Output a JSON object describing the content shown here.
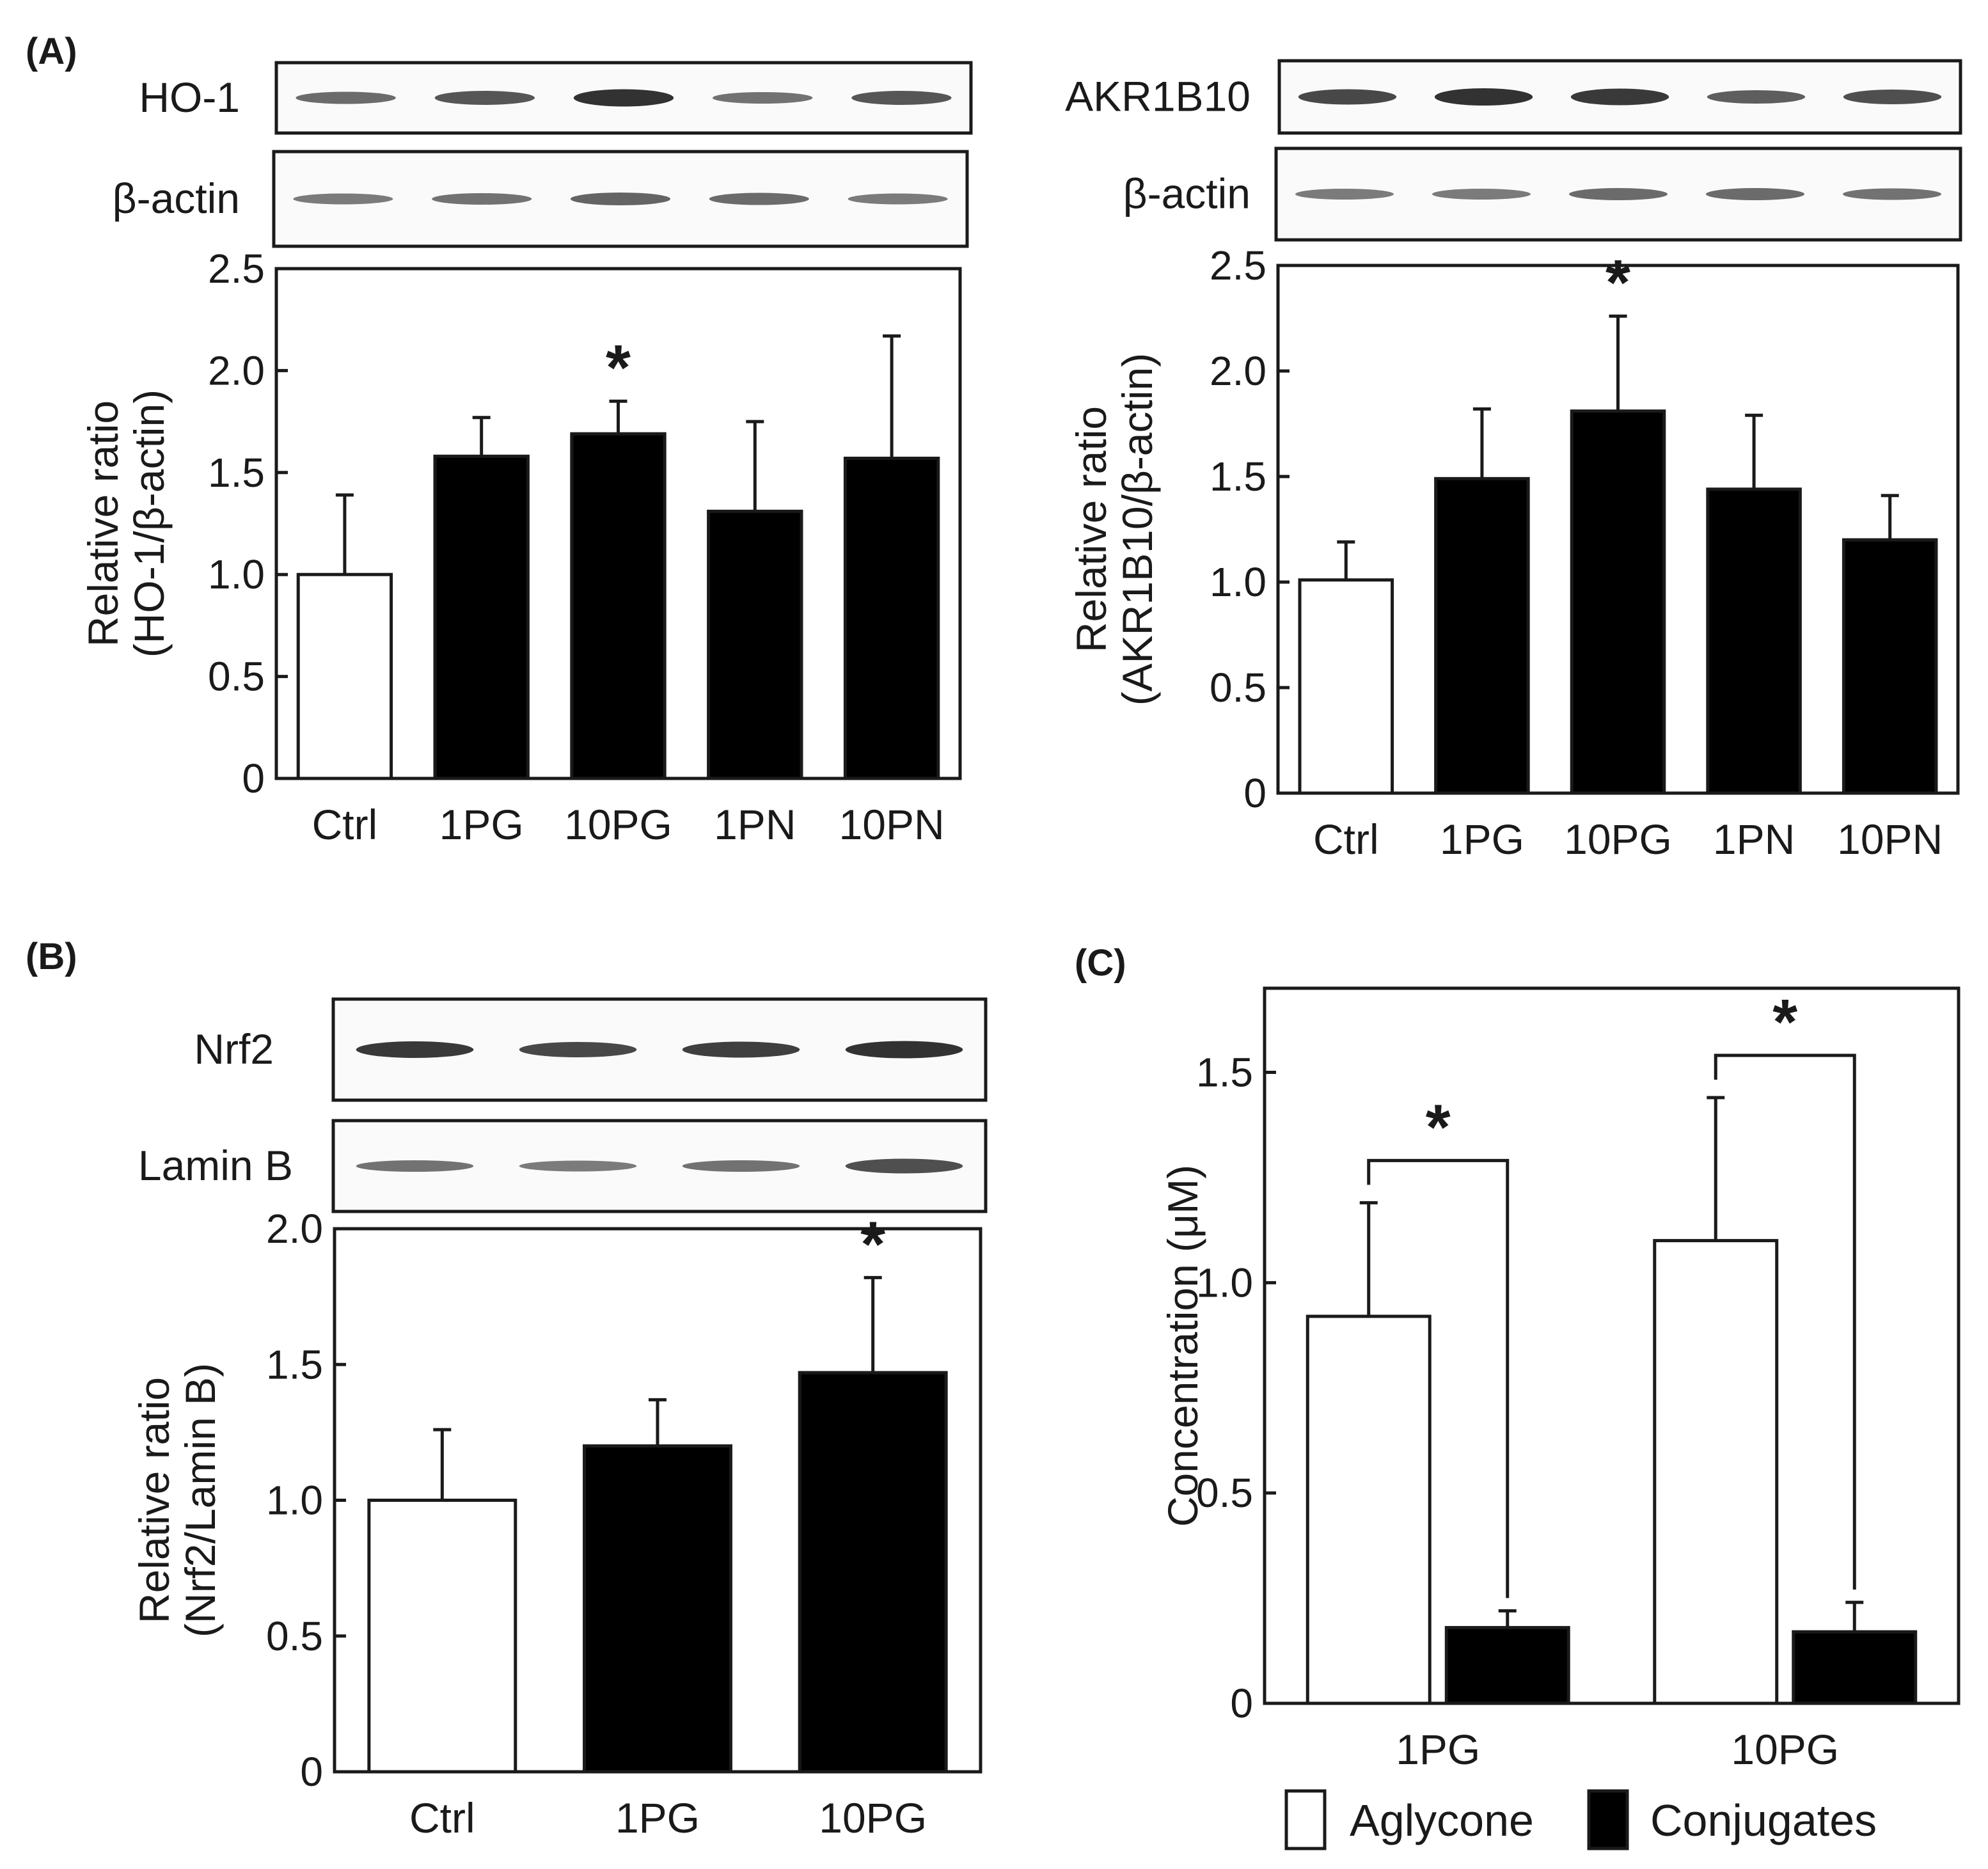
{
  "panels": {
    "A": "(A)",
    "B": "(B)",
    "C": "(C)"
  },
  "blots": [
    {
      "name": "HO-1",
      "intensity": [
        0.55,
        0.7,
        0.95,
        0.5,
        0.7
      ]
    },
    {
      "name": "β-actin",
      "intensity": [
        0.45,
        0.5,
        0.6,
        0.55,
        0.45
      ]
    },
    {
      "name": "AKR1B10",
      "intensity": [
        0.8,
        0.95,
        0.9,
        0.65,
        0.75
      ]
    },
    {
      "name": "β-actin",
      "intensity": [
        0.45,
        0.45,
        0.55,
        0.55,
        0.5
      ]
    },
    {
      "name": "Nrf2",
      "intensity": [
        0.9,
        0.8,
        0.85,
        0.95
      ]
    },
    {
      "name": "Lamin B",
      "intensity": [
        0.5,
        0.45,
        0.5,
        0.75
      ]
    }
  ],
  "chart_data": [
    {
      "id": "A-left",
      "type": "bar",
      "categories": [
        "Ctrl",
        "1PG",
        "10PG",
        "1PN",
        "10PN"
      ],
      "values": [
        1.0,
        1.58,
        1.69,
        1.31,
        1.57
      ],
      "errors": [
        0.39,
        0.19,
        0.16,
        0.44,
        0.6
      ],
      "fills": [
        "#ffffff",
        "#000000",
        "#000000",
        "#000000",
        "#000000"
      ],
      "significant": [
        false,
        false,
        true,
        false,
        false
      ],
      "significance_marker": "*",
      "ylabel": [
        "Relative ratio",
        "(HO-1/β-actin)"
      ],
      "ylim": [
        0,
        2.5
      ],
      "yticks": [
        "0",
        "0.5",
        "1.0",
        "1.5",
        "2.0",
        "2.5"
      ]
    },
    {
      "id": "A-right",
      "type": "bar",
      "categories": [
        "Ctrl",
        "1PG",
        "10PG",
        "1PN",
        "10PN"
      ],
      "values": [
        1.01,
        1.49,
        1.81,
        1.44,
        1.2
      ],
      "errors": [
        0.18,
        0.33,
        0.45,
        0.35,
        0.21
      ],
      "fills": [
        "#ffffff",
        "#000000",
        "#000000",
        "#000000",
        "#000000"
      ],
      "significant": [
        false,
        false,
        true,
        false,
        false
      ],
      "significance_marker": "*",
      "ylabel": [
        "Relative ratio",
        "(AKR1B10/β-actin)"
      ],
      "ylim": [
        0,
        2.5
      ],
      "yticks": [
        "0",
        "0.5",
        "1.0",
        "1.5",
        "2.0",
        "2.5"
      ]
    },
    {
      "id": "B",
      "type": "bar",
      "categories": [
        "Ctrl",
        "1PG",
        "10PG"
      ],
      "values": [
        1.0,
        1.2,
        1.47
      ],
      "errors": [
        0.26,
        0.17,
        0.35
      ],
      "fills": [
        "#ffffff",
        "#000000",
        "#000000"
      ],
      "significant": [
        false,
        false,
        true
      ],
      "significance_marker": "*",
      "ylabel": [
        "Relative ratio",
        "(Nrf2/Lamin B)"
      ],
      "ylim": [
        0,
        2.0
      ],
      "yticks": [
        "0",
        "0.5",
        "1.0",
        "1.5",
        "2.0"
      ]
    },
    {
      "id": "C",
      "type": "bar",
      "categories": [
        "1PG",
        "10PG"
      ],
      "series": [
        {
          "name": "Aglycone",
          "fill": "#ffffff",
          "values": [
            0.92,
            1.1
          ],
          "errors": [
            0.27,
            0.34
          ]
        },
        {
          "name": "Conjugates",
          "fill": "#000000",
          "values": [
            0.18,
            0.17
          ],
          "errors": [
            0.04,
            0.07
          ]
        }
      ],
      "significance_marker": "*",
      "ylabel": [
        "Concentration (μM)"
      ],
      "ylim": [
        0,
        1.7
      ],
      "yticks": [
        "0",
        "0.5",
        "1.0",
        "1.5"
      ]
    }
  ]
}
